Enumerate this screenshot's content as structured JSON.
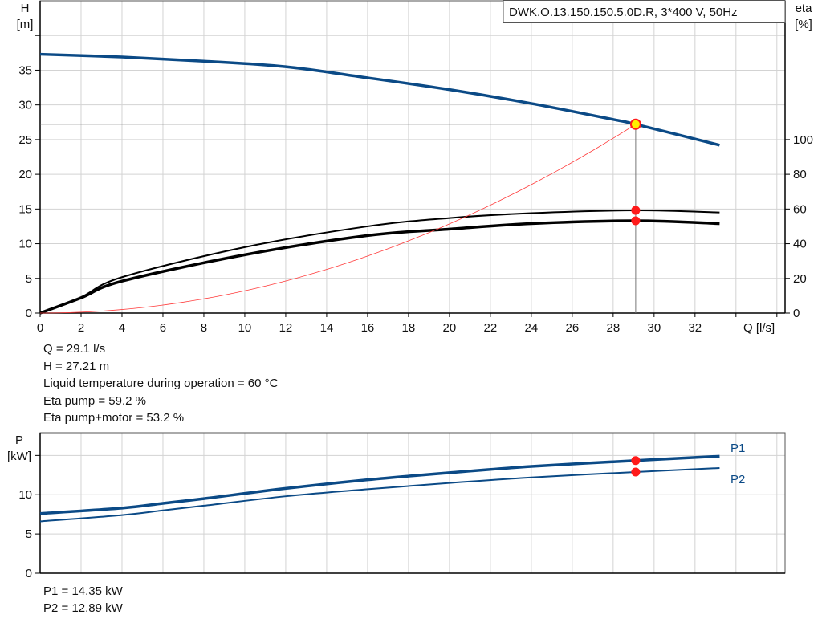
{
  "colors": {
    "curve": "#0b4a86",
    "eta": "#000000",
    "system": "#ff3b3b",
    "marker": "#ff1a1a",
    "op_fill": "#ffee00",
    "grid": "#d3d3d3"
  },
  "chart_data": [
    {
      "type": "line",
      "title": "DWK.O.13.150.150.5.0D.R, 3*400  V, 50Hz",
      "xlabel": "Q [l/s]",
      "ylabel_left": [
        "H",
        "[m]"
      ],
      "ylabel_right": [
        "eta",
        "[%]"
      ],
      "xlim": [
        0,
        36.4
      ],
      "ylim_left": [
        0,
        45
      ],
      "ylim_right": [
        0,
        180
      ],
      "xticks": [
        0,
        2,
        4,
        6,
        8,
        10,
        12,
        14,
        16,
        18,
        20,
        22,
        24,
        26,
        28,
        30,
        32
      ],
      "yticks_left": [
        0,
        5,
        10,
        15,
        20,
        25,
        30,
        35
      ],
      "yticks_right": [
        0,
        20,
        40,
        60,
        80,
        100
      ],
      "grid": true,
      "series": [
        {
          "key": "H",
          "axis": "left",
          "x": [
            0,
            4,
            8,
            12,
            16,
            20,
            24,
            28,
            29.1,
            33.2
          ],
          "y": [
            37.3,
            36.9,
            36.3,
            35.5,
            33.9,
            32.2,
            30.2,
            27.9,
            27.21,
            24.2
          ]
        },
        {
          "key": "eta_pump",
          "axis": "right",
          "x": [
            0,
            2,
            4,
            10,
            16,
            20,
            24,
            29.1,
            33.2
          ],
          "y": [
            0,
            9.2,
            20.7,
            38,
            50,
            54.8,
            57.6,
            59.2,
            58
          ]
        },
        {
          "key": "eta_pump_motor",
          "axis": "right",
          "x": [
            0,
            2,
            4,
            10,
            16,
            20,
            24,
            29.1,
            33.2
          ],
          "y": [
            0,
            8.8,
            18.4,
            33.6,
            44.7,
            48.4,
            51.6,
            53.2,
            51.6
          ]
        },
        {
          "key": "system",
          "axis": "left",
          "type": "quadratic",
          "x_end": 29.1,
          "y_end": 27.21
        }
      ],
      "operating_point": {
        "Q": 29.1,
        "H": 27.21,
        "eta_pump": 59.2,
        "eta_pump_motor": 53.2
      }
    },
    {
      "type": "line",
      "ylabel": [
        "P",
        "[kW]"
      ],
      "xlim": [
        0,
        36.4
      ],
      "ylim": [
        0,
        17.9
      ],
      "yticks": [
        0,
        5,
        10,
        15
      ],
      "yticklabels": [
        "0",
        "5",
        "10",
        ""
      ],
      "grid": true,
      "series": [
        {
          "name": "P1",
          "x": [
            0,
            4,
            6,
            8,
            12,
            16,
            20,
            24,
            29.1,
            33.2
          ],
          "y": [
            7.6,
            8.3,
            8.9,
            9.5,
            10.8,
            11.9,
            12.8,
            13.6,
            14.35,
            14.9
          ]
        },
        {
          "name": "P2",
          "x": [
            0,
            4,
            6,
            8,
            12,
            16,
            20,
            24,
            29.1,
            33.2
          ],
          "y": [
            6.6,
            7.4,
            8.0,
            8.6,
            9.8,
            10.7,
            11.5,
            12.2,
            12.89,
            13.4
          ]
        }
      ],
      "operating_point": {
        "Q": 29.1,
        "P1": 14.35,
        "P2": 12.89
      }
    }
  ],
  "readout": {
    "lines": [
      "Q = 29.1 l/s",
      "H = 27.21 m",
      "Liquid temperature during operation = 60 °C",
      "Eta pump = 59.2 %",
      "Eta pump+motor = 53.2 %"
    ],
    "power_lines": [
      "P1 = 14.35 kW",
      "P2 = 12.89 kW"
    ]
  }
}
